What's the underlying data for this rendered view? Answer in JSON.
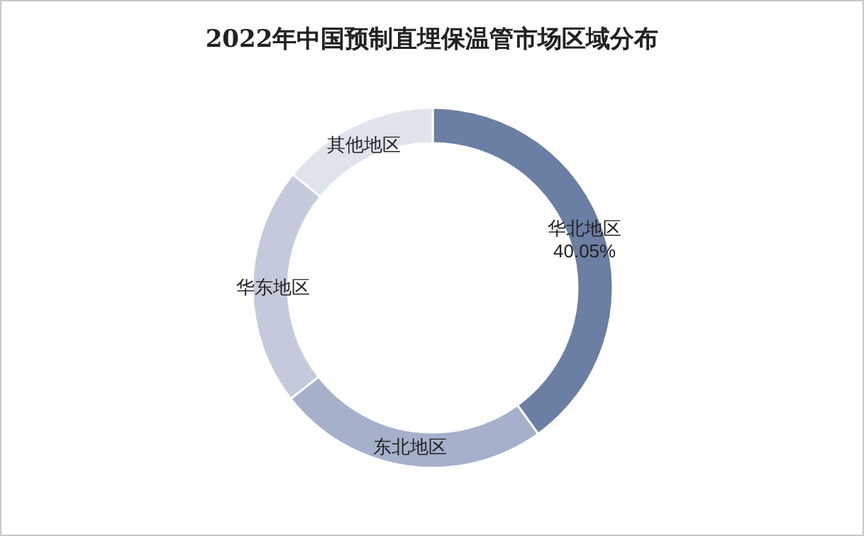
{
  "chart_data": {
    "type": "donut",
    "title": "2022年中国预制直埋保温管市场区域分布",
    "categories": [
      "华北地区",
      "东北地区",
      "华东地区",
      "其他地区"
    ],
    "values": [
      40.05,
      24.4,
      21.4,
      14.15
    ],
    "value_labels": [
      "40.05%",
      null,
      null,
      null
    ],
    "colors": [
      "#6b7ea3",
      "#a5b0ca",
      "#c4cadb",
      "#dfe3ec"
    ]
  }
}
